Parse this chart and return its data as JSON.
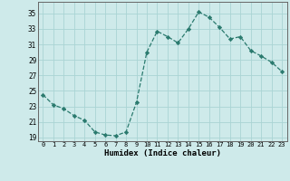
{
  "x": [
    0,
    1,
    2,
    3,
    4,
    5,
    6,
    7,
    8,
    9,
    10,
    11,
    12,
    13,
    14,
    15,
    16,
    17,
    18,
    19,
    20,
    21,
    22,
    23
  ],
  "y": [
    24.5,
    23.2,
    22.7,
    21.8,
    21.2,
    19.7,
    19.3,
    19.2,
    19.7,
    23.5,
    30.0,
    32.7,
    32.0,
    31.2,
    33.0,
    35.2,
    34.5,
    33.2,
    31.7,
    32.0,
    30.2,
    29.5,
    28.7,
    27.5
  ],
  "line_color": "#2a7a6e",
  "marker": "D",
  "marker_size": 2.2,
  "bg_color": "#ceeaea",
  "grid_color": "#aad4d4",
  "xlabel": "Humidex (Indice chaleur)",
  "xlim": [
    -0.5,
    23.5
  ],
  "ylim": [
    18.5,
    36.5
  ],
  "yticks": [
    19,
    21,
    23,
    25,
    27,
    29,
    31,
    33,
    35
  ],
  "xticks": [
    0,
    1,
    2,
    3,
    4,
    5,
    6,
    7,
    8,
    9,
    10,
    11,
    12,
    13,
    14,
    15,
    16,
    17,
    18,
    19,
    20,
    21,
    22,
    23
  ]
}
